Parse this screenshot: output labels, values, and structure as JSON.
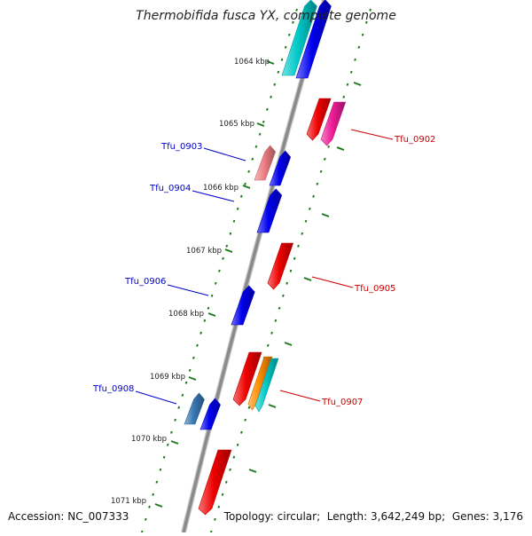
{
  "title": "Thermobifida fusca YX, complete genome",
  "footer": {
    "accession_label": "Accession:",
    "accession": "NC_007333",
    "topology_label": "Topology:",
    "topology": "circular",
    "length_label": "Length:",
    "length": "3,642,249 bp",
    "genes_label": "Genes:",
    "genes": "3,176"
  },
  "scale_labels": [
    "1064 kbp",
    "1065 kbp",
    "1066 kbp",
    "1067 kbp",
    "1068 kbp",
    "1069 kbp",
    "1070 kbp",
    "1071 kbp"
  ],
  "genes_left": [
    {
      "name": "Tfu_0903",
      "color": "#0000cc"
    },
    {
      "name": "Tfu_0904",
      "color": "#0000cc"
    },
    {
      "name": "Tfu_0906",
      "color": "#0000cc"
    },
    {
      "name": "Tfu_0908",
      "color": "#0000cc"
    }
  ],
  "genes_right": [
    {
      "name": "Tfu_0902",
      "color": "#cc0000"
    },
    {
      "name": "Tfu_0905",
      "color": "#cc0000"
    },
    {
      "name": "Tfu_0907",
      "color": "#cc0000"
    }
  ],
  "colors": {
    "backbone": "#8a8a8a",
    "scale": "#1f7a1f",
    "minus_strand": "#0000ee",
    "plus_strand": "#ee0000",
    "cyan": "#00c8c8",
    "pink": "#ee1c96",
    "salmon": "#ef7f86",
    "orange": "#ff8c00",
    "steelblue": "#3a78b5"
  }
}
